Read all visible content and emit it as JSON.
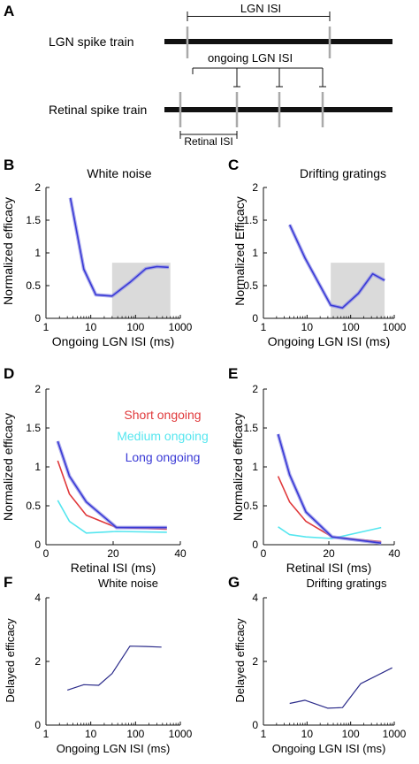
{
  "panel_letters": [
    "A",
    "B",
    "C",
    "D",
    "E",
    "F",
    "G"
  ],
  "schematic": {
    "lgn_train_label": "LGN spike train",
    "retinal_train_label": "Retinal spike train",
    "lgn_isi_label": "LGN ISI",
    "ongoing_lgn_isi_label": "ongoing LGN ISI",
    "retinal_isi_label": "Retinal ISI"
  },
  "colors": {
    "blue": "#3a3ad6",
    "blue_band": "#8f8fe6",
    "red": "#e0393b",
    "cyan": "#55e6ef",
    "navy": "#2b2b8a",
    "shade": "#dadada",
    "spike": "#aaaaaa"
  },
  "chart_data": [
    {
      "panel": "B",
      "type": "line",
      "title": "White noise",
      "xlabel": "Ongoing LGN ISI (ms)",
      "ylabel": "Normalized efficacy",
      "xscale": "log",
      "xlim": [
        1,
        1000
      ],
      "ylim": [
        0,
        2
      ],
      "xticks": [
        1,
        10,
        100,
        1000
      ],
      "xtick_labels": [
        "1",
        "10",
        "100",
        "1000"
      ],
      "yticks": [
        0,
        0.5,
        1,
        1.5,
        2
      ],
      "ytick_labels": [
        "0",
        "0.5",
        "1",
        "1.5",
        "2"
      ],
      "shaded_x": [
        30,
        600
      ],
      "series": [
        {
          "color": "blue",
          "x": [
            3.5,
            7,
            13,
            30,
            75,
            170,
            300,
            550
          ],
          "y": [
            1.84,
            0.75,
            0.36,
            0.34,
            0.55,
            0.76,
            0.79,
            0.78
          ]
        }
      ]
    },
    {
      "panel": "C",
      "type": "line",
      "title": "Drifting gratings",
      "xlabel": "Ongoing LGN ISI (ms)",
      "ylabel": "Normalized Efficacy",
      "xscale": "log",
      "xlim": [
        1,
        1000
      ],
      "ylim": [
        0,
        2
      ],
      "xticks": [
        1,
        10,
        100,
        1000
      ],
      "xtick_labels": [
        "1",
        "10",
        "100",
        "1000"
      ],
      "yticks": [
        0,
        0.5,
        1,
        1.5,
        2
      ],
      "ytick_labels": [
        "0",
        "0.5",
        "1",
        "1.5",
        "2"
      ],
      "shaded_x": [
        35,
        600
      ],
      "series": [
        {
          "color": "blue",
          "x": [
            4,
            9,
            15,
            35,
            65,
            150,
            320,
            600
          ],
          "y": [
            1.43,
            0.92,
            0.65,
            0.2,
            0.16,
            0.38,
            0.68,
            0.58
          ]
        }
      ]
    },
    {
      "panel": "D",
      "type": "line",
      "xlabel": "Retinal ISI (ms)",
      "ylabel": "Normalized efficacy",
      "xlim": [
        0,
        40
      ],
      "ylim": [
        0,
        2
      ],
      "xticks": [
        0,
        20,
        40
      ],
      "xtick_labels": [
        "0",
        "20",
        "40"
      ],
      "yticks": [
        0,
        0.5,
        1,
        1.5,
        2
      ],
      "ytick_labels": [
        "0",
        "0.5",
        "1",
        "1.5",
        "2"
      ],
      "series": [
        {
          "name": "Short ongoing",
          "color": "red",
          "x": [
            3.5,
            7,
            12,
            21,
            36
          ],
          "y": [
            1.08,
            0.65,
            0.38,
            0.22,
            0.2
          ]
        },
        {
          "name": "Medium ongoing",
          "color": "cyan",
          "x": [
            3.5,
            7,
            12,
            21,
            36
          ],
          "y": [
            0.57,
            0.3,
            0.15,
            0.17,
            0.16
          ]
        },
        {
          "name": "Long ongoing",
          "color": "blue",
          "x": [
            3.5,
            7,
            12,
            21,
            36
          ],
          "y": [
            1.33,
            0.88,
            0.55,
            0.22,
            0.22
          ]
        }
      ]
    },
    {
      "panel": "E",
      "type": "line",
      "xlabel": "Retinal ISI (ms)",
      "ylabel": "Normalized efficacy",
      "xlim": [
        0,
        40
      ],
      "ylim": [
        0,
        2
      ],
      "xticks": [
        0,
        20,
        40
      ],
      "xtick_labels": [
        "0",
        "20",
        "40"
      ],
      "yticks": [
        0,
        0.5,
        1,
        1.5,
        2
      ],
      "ytick_labels": [
        "0",
        "0.5",
        "1",
        "1.5",
        "2"
      ],
      "series": [
        {
          "color": "red",
          "x": [
            4.5,
            8,
            13,
            21,
            36
          ],
          "y": [
            0.88,
            0.55,
            0.3,
            0.1,
            0.04
          ]
        },
        {
          "color": "cyan",
          "x": [
            4.5,
            8,
            13,
            21,
            36
          ],
          "y": [
            0.23,
            0.13,
            0.1,
            0.08,
            0.22
          ]
        },
        {
          "color": "blue",
          "x": [
            4.5,
            8,
            13,
            21,
            36
          ],
          "y": [
            1.42,
            0.9,
            0.42,
            0.1,
            0.02
          ]
        }
      ]
    },
    {
      "panel": "F",
      "type": "line",
      "title": "White noise",
      "xlabel": "Ongoing LGN ISI (ms)",
      "ylabel": "Delayed efficacy",
      "xscale": "log",
      "xlim": [
        1,
        1000
      ],
      "ylim": [
        0,
        4
      ],
      "xticks": [
        1,
        10,
        100,
        1000
      ],
      "xtick_labels": [
        "1",
        "10",
        "100",
        "1000"
      ],
      "yticks": [
        0,
        2,
        4
      ],
      "ytick_labels": [
        "0",
        "2",
        "4"
      ],
      "series": [
        {
          "color": "navy",
          "x": [
            3,
            7,
            15,
            30,
            75,
            170,
            380
          ],
          "y": [
            1.1,
            1.27,
            1.25,
            1.62,
            2.48,
            2.47,
            2.45
          ]
        }
      ]
    },
    {
      "panel": "G",
      "type": "line",
      "title": "Drifting gratings",
      "xlabel": "Ongoing LGN ISI (ms)",
      "ylabel": "Delayed efficacy",
      "xscale": "log",
      "xlim": [
        1,
        1000
      ],
      "ylim": [
        0,
        4
      ],
      "xticks": [
        1,
        10,
        100,
        1000
      ],
      "xtick_labels": [
        "1",
        "10",
        "100",
        "1000"
      ],
      "yticks": [
        0,
        2,
        4
      ],
      "ytick_labels": [
        "0",
        "2",
        "4"
      ],
      "series": [
        {
          "color": "navy",
          "x": [
            4,
            9,
            30,
            65,
            170,
            900
          ],
          "y": [
            0.68,
            0.78,
            0.53,
            0.55,
            1.3,
            1.8
          ]
        }
      ]
    }
  ]
}
